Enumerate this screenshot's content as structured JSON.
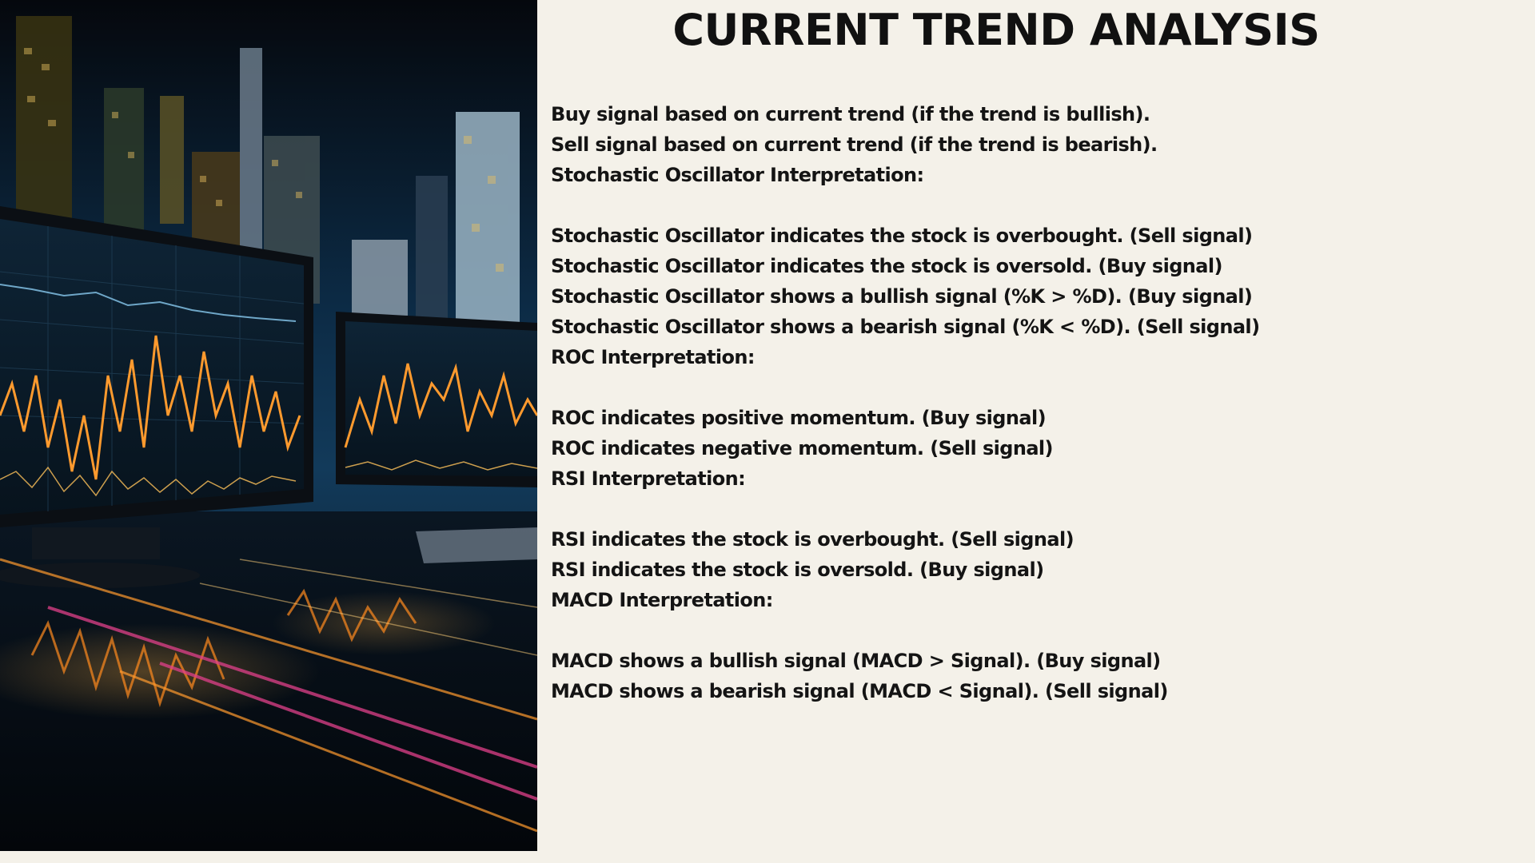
{
  "title": "CURRENT TREND ANALYSIS",
  "lines": [
    "Buy signal based on current trend (if the trend is bullish).",
    "Sell signal based on current trend (if the trend is bearish).",
    "Stochastic Oscillator Interpretation:",
    "",
    "Stochastic Oscillator indicates the stock is overbought. (Sell signal)",
    "Stochastic Oscillator indicates the stock is oversold. (Buy signal)",
    "Stochastic Oscillator shows a bullish signal (%K > %D). (Buy signal)",
    "Stochastic Oscillator shows a bearish signal (%K < %D). (Sell signal)",
    "ROC Interpretation:",
    "",
    "ROC indicates positive momentum. (Buy signal)",
    "ROC indicates negative momentum. (Sell signal)",
    "RSI Interpretation:",
    "",
    "RSI indicates the stock is overbought. (Sell signal)",
    "RSI indicates the stock is oversold. (Buy signal)",
    "MACD Interpretation:",
    "",
    "MACD shows a bullish signal (MACD > Signal). (Buy signal)",
    "MACD shows a bearish signal (MACD < Signal). (Sell signal)"
  ],
  "image": {
    "subject": "trading-monitors-city-night-photo"
  },
  "colors": {
    "background": "#f4f1e9",
    "text": "#141414",
    "accent_orange": "#ff9a2e",
    "accent_pink": "#e0408a"
  }
}
